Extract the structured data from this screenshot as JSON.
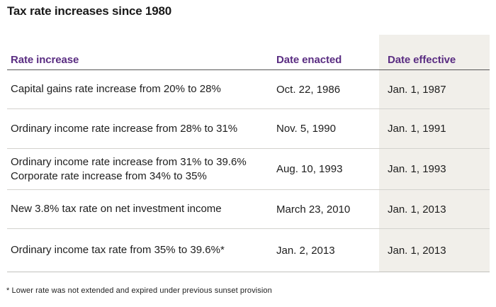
{
  "title": "Tax rate increases since 1980",
  "colors": {
    "header_text_purple": "#5a2d82",
    "shaded_column_bg": "#f1efea",
    "body_text": "#1d1d1d",
    "header_underline": "#565656",
    "row_separator": "#d3d2ce",
    "bottom_border": "#c2c1bd"
  },
  "table": {
    "columns": [
      {
        "label": "Rate increase"
      },
      {
        "label": "Date enacted"
      },
      {
        "label": "Date effective"
      }
    ],
    "rows": [
      {
        "rate_lines": [
          "Capital gains rate increase from 20% to 28%"
        ],
        "date_enacted": "Oct. 22, 1986",
        "date_effective": "Jan. 1, 1987"
      },
      {
        "rate_lines": [
          "Ordinary income rate increase from 28% to 31%"
        ],
        "date_enacted": "Nov. 5, 1990",
        "date_effective": "Jan. 1, 1991"
      },
      {
        "rate_lines": [
          "Ordinary income rate increase from 31% to 39.6%",
          "Corporate rate increase from 34% to 35%"
        ],
        "date_enacted": "Aug. 10, 1993",
        "date_effective": "Jan. 1, 1993"
      },
      {
        "rate_lines": [
          "New 3.8% tax rate on net investment income"
        ],
        "date_enacted": "March 23, 2010",
        "date_effective": "Jan. 1, 2013"
      },
      {
        "rate_lines": [
          "Ordinary income tax rate from 35% to 39.6%*"
        ],
        "date_enacted": "Jan. 2, 2013",
        "date_effective": "Jan. 1, 2013"
      }
    ]
  },
  "footnote": "* Lower rate was not extended and expired under previous sunset provision"
}
